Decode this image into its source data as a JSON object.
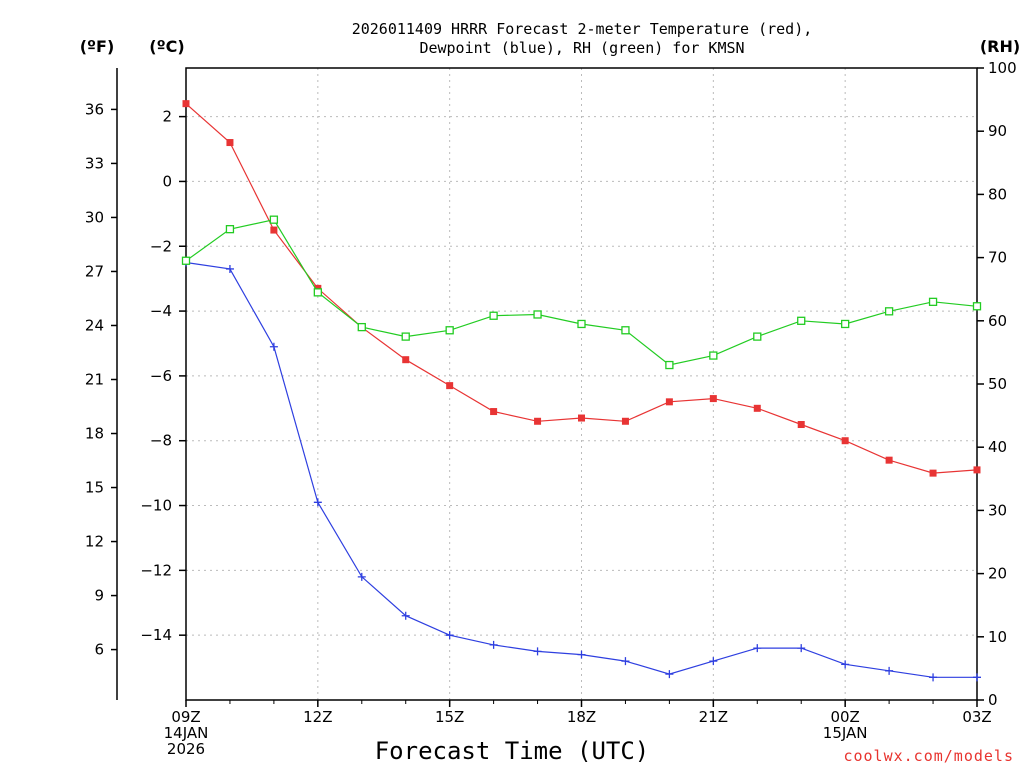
{
  "chart_data": {
    "type": "line",
    "title": [
      "2026011409 HRRR Forecast 2-meter Temperature (red),",
      "Dewpoint (blue), RH (green) for KMSN"
    ],
    "xlabel": "Forecast Time (UTC)",
    "credit": "coolwx.com/models",
    "units": {
      "fahrenheit": "(ºF)",
      "celsius": "(ºC)",
      "rh": "(RH)"
    },
    "x_hours": [
      0,
      1,
      2,
      3,
      4,
      5,
      6,
      7,
      8,
      9,
      10,
      11,
      12,
      13,
      14,
      15,
      16,
      17,
      18
    ],
    "x_ticks": [
      {
        "hour": 0,
        "lines": [
          "09Z",
          "14JAN",
          "2026"
        ]
      },
      {
        "hour": 3,
        "lines": [
          "12Z"
        ]
      },
      {
        "hour": 6,
        "lines": [
          "15Z"
        ]
      },
      {
        "hour": 9,
        "lines": [
          "18Z"
        ]
      },
      {
        "hour": 12,
        "lines": [
          "21Z"
        ]
      },
      {
        "hour": 15,
        "lines": [
          "00Z",
          "15JAN"
        ]
      },
      {
        "hour": 18,
        "lines": [
          "03Z"
        ]
      }
    ],
    "xlim": [
      0,
      18
    ],
    "celsius_axis": {
      "ylim": [
        -16,
        3.5
      ],
      "ticks": [
        2,
        0,
        -2,
        -4,
        -6,
        -8,
        -10,
        -12,
        -14
      ]
    },
    "fahrenheit_axis": {
      "ylim": [
        3.2,
        38.3
      ],
      "ticks": [
        36,
        33,
        30,
        27,
        24,
        21,
        18,
        15,
        12,
        9,
        6
      ]
    },
    "rh_axis": {
      "ylim": [
        0,
        100
      ],
      "ticks": [
        100,
        90,
        80,
        70,
        60,
        50,
        40,
        30,
        20,
        10,
        0
      ]
    },
    "series": [
      {
        "name": "Temperature",
        "unit": "C",
        "color": "#e83434",
        "marker": "filled-square",
        "values": [
          2.4,
          1.2,
          -1.5,
          -3.3,
          -4.5,
          -5.5,
          -6.3,
          -7.1,
          -7.4,
          -7.3,
          -7.4,
          -6.8,
          -6.7,
          -7.0,
          -7.5,
          -8.0,
          -8.6,
          -9.0,
          -8.9
        ]
      },
      {
        "name": "Dewpoint",
        "unit": "C",
        "color": "#2e3fe0",
        "marker": "plus",
        "values": [
          -2.5,
          -2.7,
          -5.1,
          -9.9,
          -12.2,
          -13.4,
          -14.0,
          -14.3,
          -14.5,
          -14.6,
          -14.8,
          -15.2,
          -14.8,
          -14.4,
          -14.4,
          -14.9,
          -15.1,
          -15.3,
          -15.3
        ]
      },
      {
        "name": "RH",
        "unit": "%",
        "color": "#22cc22",
        "marker": "open-square",
        "values": [
          69.5,
          74.5,
          76.0,
          64.5,
          59.0,
          57.5,
          58.5,
          60.8,
          61.0,
          59.5,
          58.5,
          53.0,
          54.5,
          57.5,
          60.0,
          59.5,
          61.5,
          63.0,
          62.3
        ]
      }
    ]
  }
}
